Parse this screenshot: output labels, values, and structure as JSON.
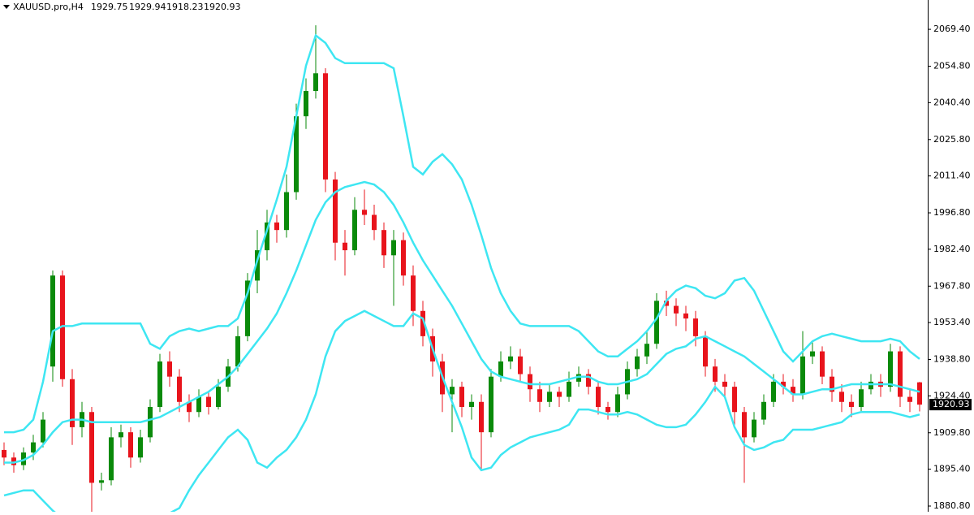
{
  "chart_data": {
    "type": "candlestick",
    "symbol": "XAUUSD.pro,H4",
    "header_ohlc": [
      1929.75,
      1929.94,
      1918.23,
      1920.93
    ],
    "last_price": 1920.93,
    "up_color": "#0a8a0a",
    "down_color": "#e8141c",
    "ylim": [
      1878.55,
      2081
    ],
    "yticks": [
      {
        "value": 1880.8,
        "label": "1880.80"
      },
      {
        "value": 1895.4,
        "label": "1895.40"
      },
      {
        "value": 1909.8,
        "label": "1909.80"
      },
      {
        "value": 1924.4,
        "label": "1924.40"
      },
      {
        "value": 1938.8,
        "label": "1938.80"
      },
      {
        "value": 1953.4,
        "label": "1953.40"
      },
      {
        "value": 1967.8,
        "label": "1967.80"
      },
      {
        "value": 1982.4,
        "label": "1982.40"
      },
      {
        "value": 1996.8,
        "label": "1996.80"
      },
      {
        "value": 2011.4,
        "label": "2011.40"
      },
      {
        "value": 2025.8,
        "label": "2025.80"
      },
      {
        "value": 2040.4,
        "label": "2040.40"
      },
      {
        "value": 2054.8,
        "label": "2054.80"
      },
      {
        "value": 2069.4,
        "label": "2069.40"
      }
    ],
    "candles": [
      [
        1903,
        1906,
        1897,
        1900
      ],
      [
        1900,
        1902,
        1894,
        1897
      ],
      [
        1897,
        1904,
        1895,
        1902
      ],
      [
        1902,
        1909,
        1899,
        1906
      ],
      [
        1906,
        1918,
        1904,
        1915
      ],
      [
        1936,
        1974,
        1930,
        1972
      ],
      [
        1972,
        1974,
        1928,
        1931
      ],
      [
        1931,
        1935,
        1905,
        1912
      ],
      [
        1912,
        1922,
        1908,
        1918
      ],
      [
        1918,
        1920,
        1878,
        1890
      ],
      [
        1890,
        1894,
        1887,
        1891
      ],
      [
        1891,
        1912,
        1889,
        1908
      ],
      [
        1908,
        1913,
        1904,
        1910
      ],
      [
        1910,
        1912,
        1896,
        1900
      ],
      [
        1900,
        1911,
        1898,
        1908
      ],
      [
        1908,
        1923,
        1906,
        1920
      ],
      [
        1920,
        1941,
        1918,
        1938
      ],
      [
        1938,
        1942,
        1928,
        1932
      ],
      [
        1932,
        1935,
        1918,
        1922
      ],
      [
        1922,
        1925,
        1914,
        1918
      ],
      [
        1918,
        1927,
        1916,
        1924
      ],
      [
        1924,
        1926,
        1917,
        1920
      ],
      [
        1920,
        1931,
        1919,
        1928
      ],
      [
        1928,
        1939,
        1926,
        1936
      ],
      [
        1936,
        1952,
        1934,
        1948
      ],
      [
        1948,
        1973,
        1946,
        1970
      ],
      [
        1970,
        1990,
        1965,
        1982
      ],
      [
        1982,
        1998,
        1978,
        1993
      ],
      [
        1993,
        1996,
        1985,
        1990
      ],
      [
        1990,
        2012,
        1987,
        2005
      ],
      [
        2005,
        2040,
        2002,
        2035
      ],
      [
        2035,
        2050,
        2030,
        2045
      ],
      [
        2045,
        2071,
        2042,
        2052
      ],
      [
        2052,
        2054,
        2005,
        2010
      ],
      [
        2010,
        2013,
        1978,
        1985
      ],
      [
        1985,
        1990,
        1972,
        1982
      ],
      [
        1982,
        2003,
        1980,
        1998
      ],
      [
        1998,
        2006,
        1992,
        1996
      ],
      [
        1996,
        2000,
        1986,
        1990
      ],
      [
        1990,
        1993,
        1975,
        1980
      ],
      [
        1980,
        1990,
        1960,
        1986
      ],
      [
        1986,
        1989,
        1968,
        1972
      ],
      [
        1972,
        1976,
        1952,
        1958
      ],
      [
        1958,
        1962,
        1944,
        1948
      ],
      [
        1948,
        1951,
        1932,
        1938
      ],
      [
        1938,
        1941,
        1918,
        1925
      ],
      [
        1925,
        1931,
        1910,
        1928
      ],
      [
        1928,
        1930,
        1916,
        1920
      ],
      [
        1920,
        1925,
        1915,
        1922
      ],
      [
        1922,
        1925,
        1895,
        1910
      ],
      [
        1910,
        1935,
        1908,
        1932
      ],
      [
        1932,
        1942,
        1930,
        1938
      ],
      [
        1938,
        1944,
        1935,
        1940
      ],
      [
        1940,
        1943,
        1930,
        1933
      ],
      [
        1933,
        1936,
        1922,
        1927
      ],
      [
        1927,
        1930,
        1918,
        1922
      ],
      [
        1922,
        1929,
        1920,
        1926
      ],
      [
        1926,
        1928,
        1920,
        1924
      ],
      [
        1924,
        1934,
        1922,
        1930
      ],
      [
        1930,
        1936,
        1928,
        1933
      ],
      [
        1933,
        1935,
        1925,
        1928
      ],
      [
        1928,
        1930,
        1917,
        1920
      ],
      [
        1920,
        1922,
        1915,
        1918
      ],
      [
        1918,
        1928,
        1916,
        1925
      ],
      [
        1925,
        1938,
        1923,
        1935
      ],
      [
        1935,
        1943,
        1932,
        1940
      ],
      [
        1940,
        1950,
        1937,
        1945
      ],
      [
        1945,
        1965,
        1943,
        1962
      ],
      [
        1962,
        1966,
        1956,
        1960
      ],
      [
        1960,
        1963,
        1952,
        1957
      ],
      [
        1957,
        1960,
        1950,
        1955
      ],
      [
        1955,
        1958,
        1944,
        1948
      ],
      [
        1948,
        1950,
        1932,
        1936
      ],
      [
        1936,
        1939,
        1926,
        1930
      ],
      [
        1930,
        1933,
        1924,
        1928
      ],
      [
        1928,
        1930,
        1912,
        1918
      ],
      [
        1918,
        1920,
        1890,
        1908
      ],
      [
        1908,
        1918,
        1906,
        1915
      ],
      [
        1915,
        1925,
        1913,
        1922
      ],
      [
        1922,
        1933,
        1920,
        1930
      ],
      [
        1930,
        1933,
        1925,
        1928
      ],
      [
        1928,
        1931,
        1922,
        1925
      ],
      [
        1925,
        1950,
        1923,
        1940
      ],
      [
        1940,
        1946,
        1937,
        1942
      ],
      [
        1942,
        1944,
        1929,
        1932
      ],
      [
        1932,
        1935,
        1922,
        1926
      ],
      [
        1926,
        1929,
        1918,
        1922
      ],
      [
        1922,
        1925,
        1916,
        1920
      ],
      [
        1920,
        1930,
        1918,
        1927
      ],
      [
        1927,
        1933,
        1925,
        1930
      ],
      [
        1930,
        1933,
        1924,
        1928
      ],
      [
        1928,
        1945,
        1926,
        1942
      ],
      [
        1942,
        1944,
        1920,
        1924
      ],
      [
        1924,
        1927,
        1918,
        1922
      ],
      [
        1929.75,
        1929.94,
        1918.23,
        1920.93
      ]
    ],
    "bands": [
      {
        "color": "#3ee6f2",
        "values": [
          1910,
          1910,
          1911,
          1915,
          1930,
          1950,
          1952,
          1952,
          1953,
          1953,
          1953,
          1953,
          1953,
          1953,
          1953,
          1945,
          1943,
          1948,
          1950,
          1951,
          1950,
          1951,
          1952,
          1952,
          1955,
          1965,
          1978,
          1990,
          2002,
          2015,
          2035,
          2055,
          2067,
          2064,
          2058,
          2056,
          2056,
          2056,
          2056,
          2056,
          2054,
          2035,
          2015,
          2012,
          2017,
          2020,
          2016,
          2010,
          2000,
          1988,
          1975,
          1965,
          1958,
          1953,
          1952,
          1952,
          1952,
          1952,
          1952,
          1950,
          1946,
          1942,
          1940,
          1940,
          1943,
          1946,
          1950,
          1955,
          1962,
          1966,
          1968,
          1967,
          1964,
          1963,
          1965,
          1970,
          1971,
          1966,
          1958,
          1950,
          1942,
          1938,
          1942,
          1946,
          1948,
          1949,
          1948,
          1947,
          1946,
          1946,
          1946,
          1947,
          1946,
          1942,
          1939
        ]
      },
      {
        "color": "#3ee6f2",
        "values": [
          1898,
          1898,
          1899,
          1901,
          1905,
          1910,
          1914,
          1915,
          1915,
          1914,
          1914,
          1914,
          1914,
          1914,
          1914,
          1915,
          1916,
          1918,
          1920,
          1922,
          1924,
          1926,
          1929,
          1932,
          1936,
          1941,
          1946,
          1951,
          1957,
          1965,
          1974,
          1984,
          1994,
          2001,
          2005,
          2007,
          2008,
          2009,
          2008,
          2005,
          2000,
          1993,
          1985,
          1978,
          1972,
          1966,
          1960,
          1953,
          1946,
          1939,
          1934,
          1932,
          1931,
          1930,
          1929,
          1929,
          1929,
          1930,
          1931,
          1932,
          1932,
          1930,
          1929,
          1929,
          1930,
          1931,
          1933,
          1937,
          1941,
          1943,
          1944,
          1947,
          1948,
          1946,
          1944,
          1942,
          1940,
          1937,
          1934,
          1931,
          1928,
          1925,
          1925,
          1926,
          1927,
          1927,
          1928,
          1929,
          1929,
          1929,
          1929,
          1929,
          1928,
          1927,
          1926
        ]
      },
      {
        "color": "#3ee6f2",
        "values": [
          1885,
          1886,
          1887,
          1887,
          1883,
          1879,
          1876,
          1876,
          1875,
          1875,
          1875,
          1875,
          1875,
          1875,
          1875,
          1875,
          1877,
          1878,
          1880,
          1887,
          1893,
          1898,
          1903,
          1908,
          1911,
          1907,
          1898,
          1896,
          1900,
          1903,
          1908,
          1915,
          1925,
          1940,
          1950,
          1954,
          1956,
          1958,
          1956,
          1954,
          1952,
          1952,
          1957,
          1955,
          1943,
          1932,
          1922,
          1912,
          1900,
          1895,
          1896,
          1901,
          1904,
          1906,
          1908,
          1909,
          1910,
          1911,
          1913,
          1919,
          1919,
          1918,
          1917,
          1917,
          1918,
          1917,
          1915,
          1913,
          1912,
          1912,
          1913,
          1917,
          1922,
          1928,
          1924,
          1912,
          1905,
          1903,
          1904,
          1906,
          1907,
          1911,
          1911,
          1911,
          1912,
          1913,
          1914,
          1917,
          1918,
          1918,
          1918,
          1918,
          1917,
          1916,
          1917
        ]
      }
    ]
  }
}
